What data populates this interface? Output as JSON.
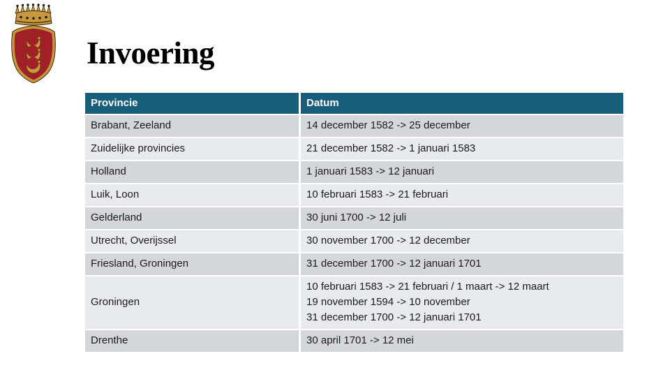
{
  "slide": {
    "title": "Invoering"
  },
  "logo": {
    "icon": "coat-of-arms-icon"
  },
  "table": {
    "headers": [
      "Provincie",
      "Datum"
    ],
    "rows": [
      {
        "provincie": "Brabant, Zeeland",
        "datum": [
          "14 december 1582 -> 25 december"
        ]
      },
      {
        "provincie": "Zuidelijke provincies",
        "datum": [
          "21 december 1582 -> 1 januari 1583"
        ]
      },
      {
        "provincie": "Holland",
        "datum": [
          "1 januari 1583 -> 12 januari"
        ]
      },
      {
        "provincie": "Luik, Loon",
        "datum": [
          "10 februari 1583 -> 21 februari"
        ]
      },
      {
        "provincie": "Gelderland",
        "datum": [
          "30 juni 1700 -> 12 juli"
        ]
      },
      {
        "provincie": "Utrecht, Overijssel",
        "datum": [
          "30 november 1700 -> 12 december"
        ]
      },
      {
        "provincie": "Friesland, Groningen",
        "datum": [
          "31 december 1700 -> 12 januari 1701"
        ]
      },
      {
        "provincie": "Groningen",
        "datum": [
          "10 februari 1583 -> 21 februari / 1 maart -> 12 maart",
          "19 november 1594 -> 10 november",
          "31 december 1700 -> 12 januari 1701"
        ]
      },
      {
        "provincie": "Drenthe",
        "datum": [
          "30 april 1701 -> 12 mei"
        ]
      }
    ]
  },
  "colors": {
    "header_bg": "#195E7B",
    "header_text": "#FFFFFF",
    "row_dark": "#D4D7DA",
    "row_light": "#E8EBED",
    "body_text": "#1A1A1A",
    "title_text": "#000000",
    "shield_red": "#A02028",
    "shield_red_dark": "#8C1B22",
    "crest_gold": "#C8983E",
    "crest_dark": "#3A2B10"
  }
}
